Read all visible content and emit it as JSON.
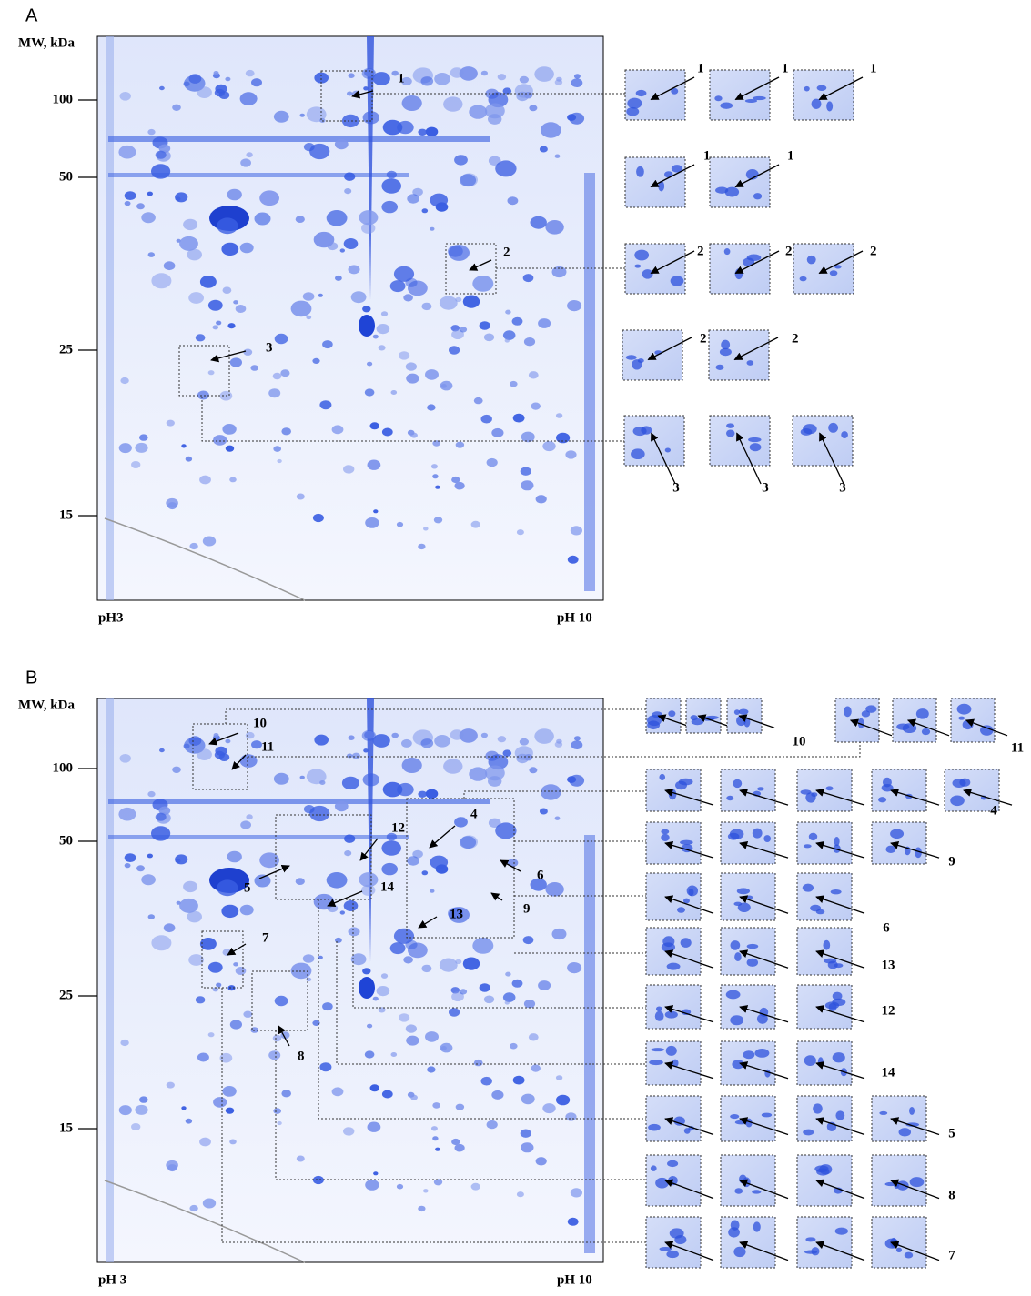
{
  "panels": [
    {
      "panel_label": "A",
      "y_axis_label": "MW, kDa",
      "y_ticks": [
        "100",
        "50",
        "25",
        "15"
      ],
      "x_left_label": "pH3",
      "x_right_label": "pH 10",
      "gel_callouts": [
        "1",
        "2",
        "3"
      ],
      "inset_rows": [
        {
          "labels": [
            "1",
            "1",
            "1"
          ]
        },
        {
          "labels": [
            "1",
            "1"
          ]
        },
        {
          "labels": [
            "2",
            "2",
            "2"
          ]
        },
        {
          "labels": [
            "2",
            "2"
          ]
        },
        {
          "labels": [
            "3",
            "3",
            "3"
          ]
        }
      ]
    },
    {
      "panel_label": "B",
      "y_axis_label": "MW, kDa",
      "y_ticks": [
        "100",
        "50",
        "25",
        "15"
      ],
      "x_left_label": "pH 3",
      "x_right_label": "pH 10",
      "gel_callouts": [
        "10",
        "11",
        "12",
        "4",
        "6",
        "5",
        "14",
        "9",
        "13",
        "7",
        "8"
      ],
      "inset_rows": [
        {
          "labels": [
            "10"
          ]
        },
        {
          "labels": [
            "11"
          ]
        },
        {
          "labels": [
            "4"
          ]
        },
        {
          "labels": [
            "9"
          ]
        },
        {
          "labels": [
            "6"
          ]
        },
        {
          "labels": [
            "13"
          ]
        },
        {
          "labels": [
            "12"
          ]
        },
        {
          "labels": [
            "14"
          ]
        },
        {
          "labels": [
            "5"
          ]
        },
        {
          "labels": [
            "8"
          ]
        },
        {
          "labels": [
            "7"
          ]
        }
      ]
    }
  ]
}
